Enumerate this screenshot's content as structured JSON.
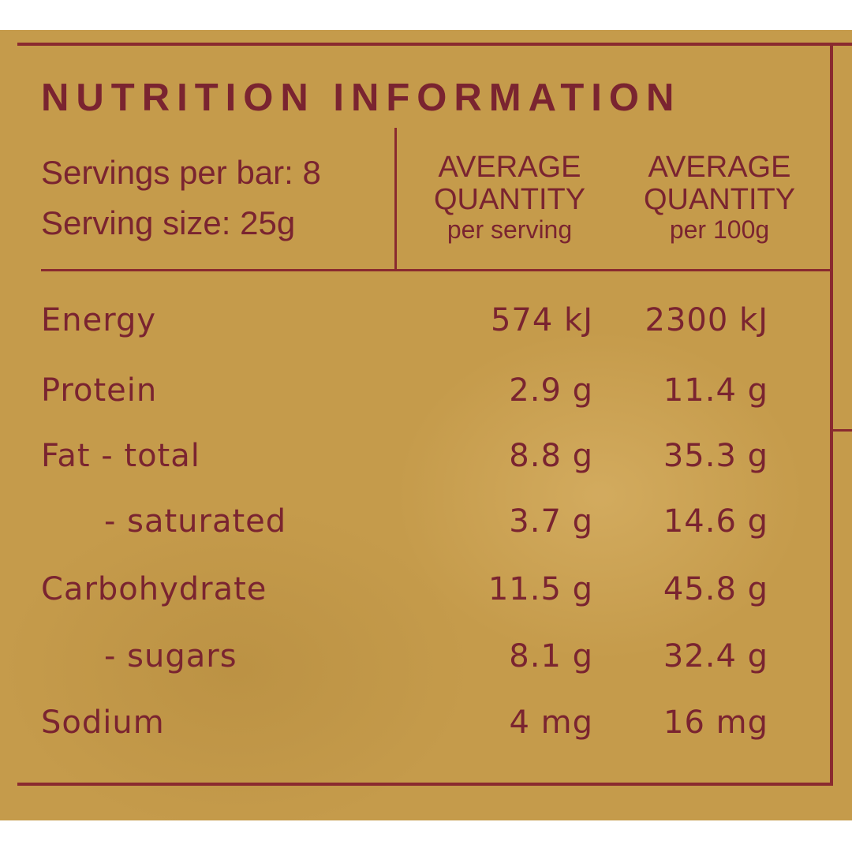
{
  "title": "NUTRITION INFORMATION",
  "servings": {
    "per_bar": "Servings per bar: 8",
    "size": "Serving size: 25g"
  },
  "columns": [
    {
      "line1": "AVERAGE",
      "line2": "QUANTITY",
      "line3": "per serving"
    },
    {
      "line1": "AVERAGE",
      "line2": "QUANTITY",
      "line3": "per 100g"
    }
  ],
  "rows": [
    {
      "nutrient": "Energy",
      "per_serving": "574 kJ",
      "per_100g": "2300 kJ",
      "indent": false
    },
    {
      "nutrient": "Protein",
      "per_serving": "2.9 g",
      "per_100g": "11.4 g",
      "indent": false
    },
    {
      "nutrient": "Fat - total",
      "per_serving": "8.8 g",
      "per_100g": "35.3 g",
      "indent": false
    },
    {
      "nutrient": "- saturated",
      "per_serving": "3.7 g",
      "per_100g": "14.6 g",
      "indent": true
    },
    {
      "nutrient": "Carbohydrate",
      "per_serving": "11.5 g",
      "per_100g": "45.8 g",
      "indent": false
    },
    {
      "nutrient": "- sugars",
      "per_serving": "8.1 g",
      "per_100g": "32.4 g",
      "indent": true
    },
    {
      "nutrient": "Sodium",
      "per_serving": "4 mg",
      "per_100g": "16 mg",
      "indent": false
    }
  ]
}
